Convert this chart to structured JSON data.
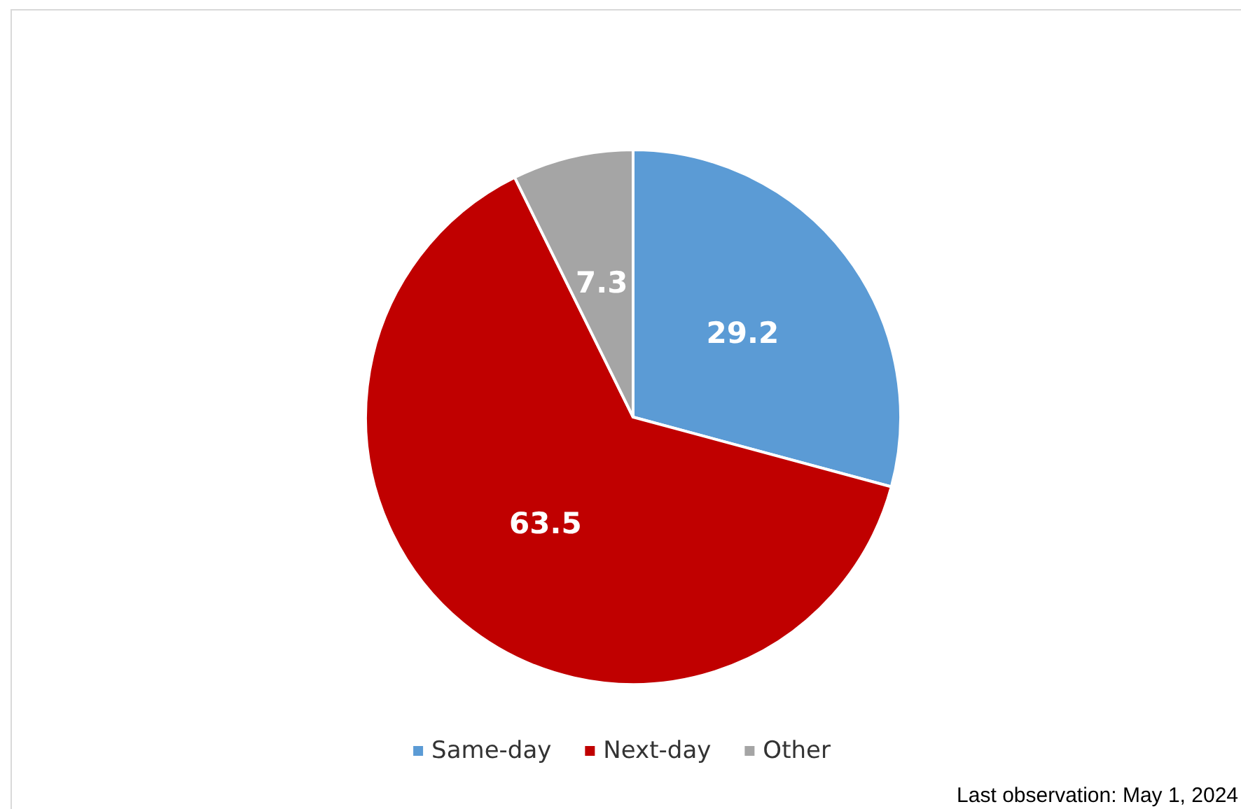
{
  "chart_data": {
    "type": "pie",
    "categories": [
      "Same-day",
      "Next-day",
      "Other"
    ],
    "values": [
      29.2,
      63.5,
      7.3
    ],
    "colors": [
      "#5b9bd5",
      "#c00000",
      "#a5a5a5"
    ],
    "data_labels": true,
    "legend": "bottom",
    "annotations": [
      "Last observation: May 1, 2024"
    ]
  }
}
